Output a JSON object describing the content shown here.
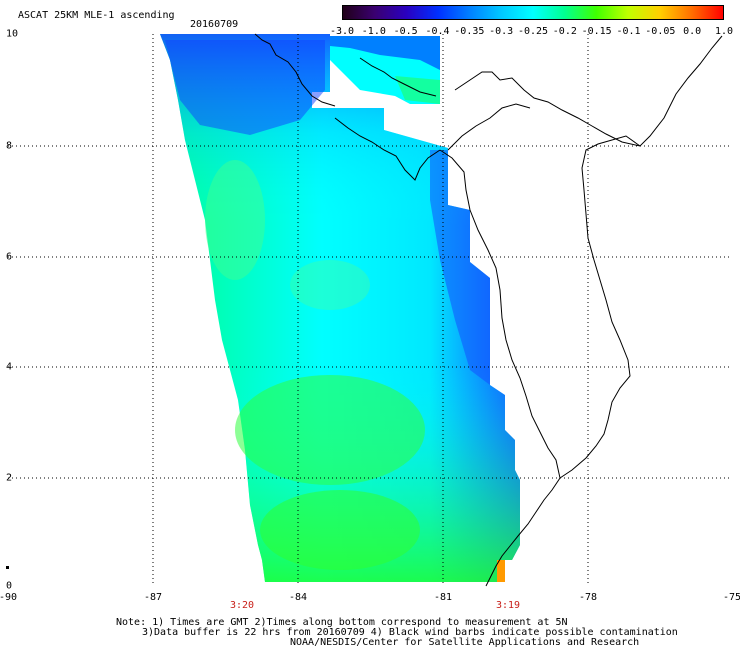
{
  "header": {
    "title": "ASCAT 25KM MLE-1 ascending",
    "date": "20160709"
  },
  "colorbar": {
    "labels": [
      "-3.0",
      "-1.0",
      "-0.5",
      "-0.4",
      "-0.35",
      "-0.3",
      "-0.25",
      "-0.2",
      "-0.15",
      "-0.1",
      "-0.05",
      "0.0",
      "1.0"
    ],
    "colors": [
      "#200018",
      "#3a0070",
      "#2a00c0",
      "#0030ff",
      "#0080ff",
      "#00c8ff",
      "#00ffff",
      "#00ff90",
      "#40ff00",
      "#c0ff00",
      "#ffd000",
      "#ff7000",
      "#ff0000"
    ]
  },
  "axes": {
    "y_ticks": [
      "0",
      "2",
      "4",
      "6",
      "8",
      "10"
    ],
    "x_ticks": [
      "-90",
      "-87",
      "-84",
      "-81",
      "-78",
      "-75"
    ],
    "times": [
      "3:20",
      "3:19"
    ]
  },
  "notes": {
    "line1": "Note: 1) Times are GMT 2)Times along bottom correspond to measurement at 5N",
    "line2": "3)Data buffer is 22 hrs from 20160709 4) Black wind barbs indicate possible contamination",
    "line3": "NOAA/NESDIS/Center for Satellite Applications and Research"
  },
  "map_colors": {
    "blue": "#1450ff",
    "cyan": "#00ffff",
    "green": "#20ff30",
    "lightgreen": "#60ff80",
    "orange": "#ff9a00",
    "coast": "#000000"
  }
}
